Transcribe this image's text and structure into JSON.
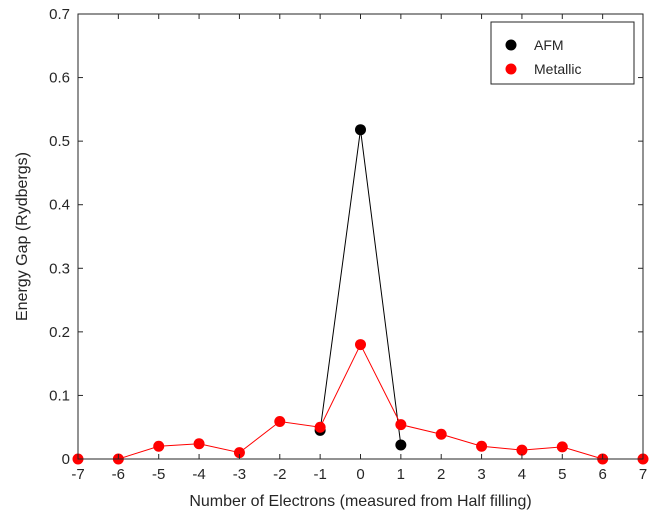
{
  "chart_data": {
    "type": "line",
    "title": "",
    "xlabel": "Number of Electrons (measured from Half filling)",
    "ylabel": "Energy Gap (Rydbergs)",
    "xlim": [
      -7,
      7
    ],
    "ylim": [
      0,
      0.7
    ],
    "x_ticks": [
      -7,
      -6,
      -5,
      -4,
      -3,
      -2,
      -1,
      0,
      1,
      2,
      3,
      4,
      5,
      6,
      7
    ],
    "y_ticks": [
      0,
      0.1,
      0.2,
      0.3,
      0.4,
      0.5,
      0.6,
      0.7
    ],
    "grid": false,
    "legend_position": "top-right",
    "series": [
      {
        "name": "AFM",
        "color": "#000000",
        "x": [
          -1,
          0,
          1
        ],
        "y": [
          0.045,
          0.518,
          0.022
        ]
      },
      {
        "name": "Metallic",
        "color": "#ff0000",
        "x": [
          -7,
          -6,
          -5,
          -4,
          -3,
          -2,
          -1,
          0,
          1,
          2,
          3,
          4,
          5,
          6,
          7
        ],
        "y": [
          0.0,
          0.0,
          0.02,
          0.024,
          0.01,
          0.059,
          0.05,
          0.18,
          0.054,
          0.039,
          0.02,
          0.014,
          0.019,
          0.0,
          0.0
        ]
      }
    ]
  }
}
